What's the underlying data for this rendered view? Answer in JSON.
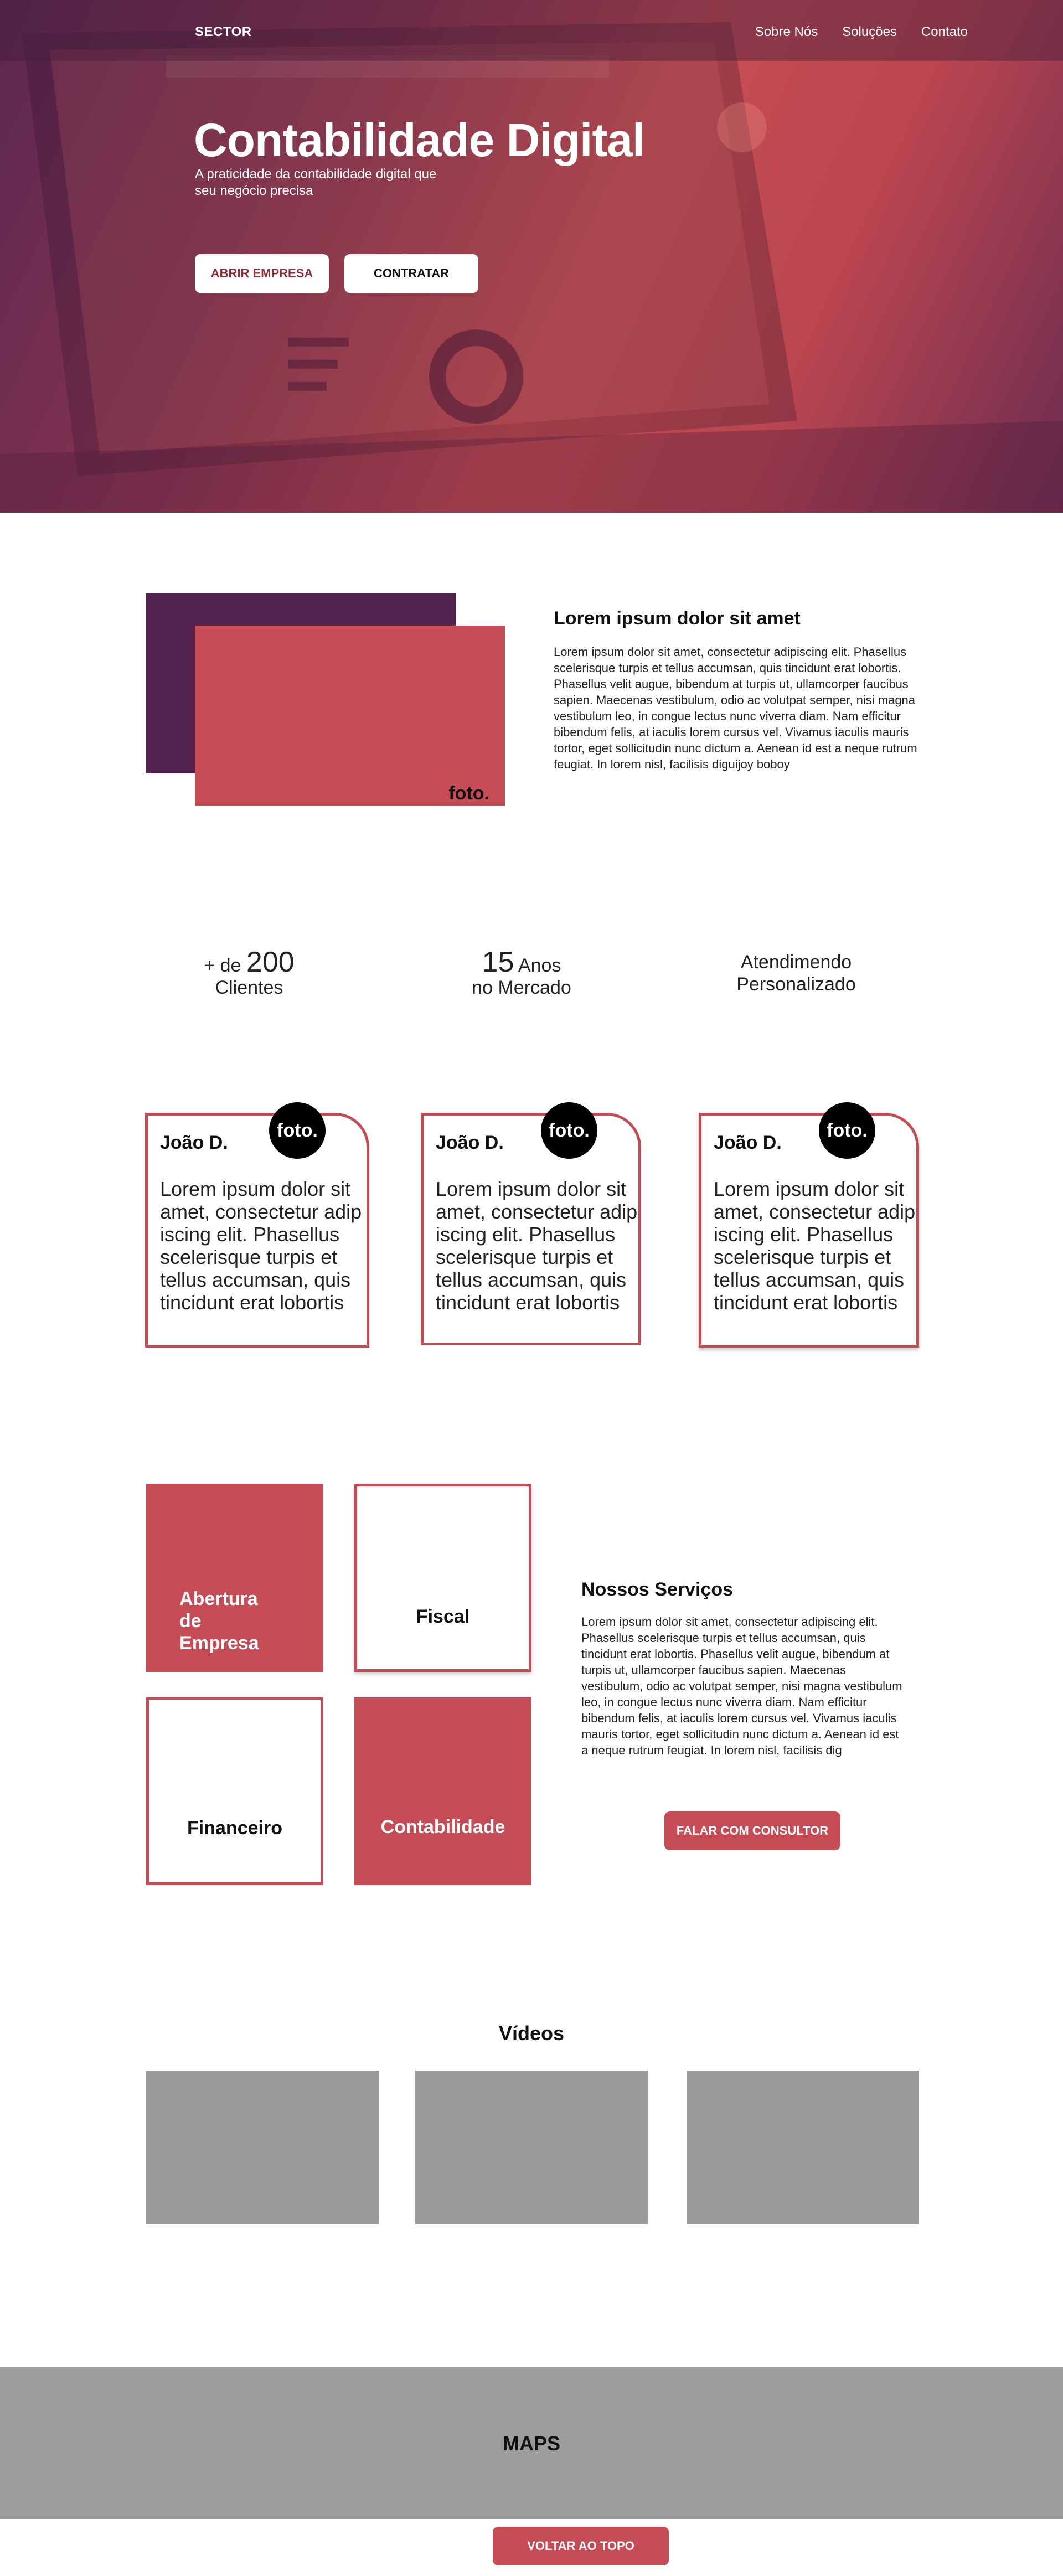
{
  "header": {
    "brand": "SECTOR",
    "nav": [
      "Sobre Nós",
      "Soluções",
      "Contato"
    ]
  },
  "hero": {
    "title": "Contabilidade Digital",
    "subtitle": "A praticidade da contabilidade digital que seu negócio precisa",
    "btn_open": "ABRIR EMPRESA",
    "btn_hire": "CONTRATAR"
  },
  "about": {
    "photo_label": "foto.",
    "title": "Lorem ipsum dolor sit amet",
    "text": "Lorem ipsum dolor sit amet, consectetur adipiscing elit. Phasellus scelerisque turpis et tellus accumsan, quis tincidunt erat lobortis. Phasellus velit augue, bibendum at turpis ut, ullamcorper faucibus sapien. Maecenas vestibulum, odio ac volutpat semper, nisi magna vestibulum leo, in congue lectus nunc viverra diam. Nam efficitur bibendum felis, at iaculis lorem cursus vel. Vivamus iaculis mauris tortor, eget sollicitudin nunc dictum a. Aenean id est a neque rutrum feugiat. In lorem nisl, facilisis diguijoy boboy"
  },
  "stats": [
    {
      "prefix": "+ de",
      "number": "200",
      "suffix": "Clientes"
    },
    {
      "number": "15",
      "suffix_inline": "Anos",
      "suffix": "no Mercado"
    },
    {
      "line1": "Atendimendo",
      "line2": "Personalizado"
    }
  ],
  "team": [
    {
      "name": "João D.",
      "photo": "foto.",
      "text": "Lorem ipsum dolor sit amet, consectetur adip iscing elit. Phasellus scelerisque turpis et tellus accumsan, quis tincidunt erat lobortis"
    },
    {
      "name": "João D.",
      "photo": "foto.",
      "text": "Lorem ipsum dolor sit amet, consectetur adip iscing elit. Phasellus scelerisque turpis et tellus accumsan, quis tincidunt erat lobortis"
    },
    {
      "name": "João D.",
      "photo": "foto.",
      "text": "Lorem ipsum dolor sit amet, consectetur adip iscing elit. Phasellus scelerisque turpis et tellus accumsan, quis tincidunt erat lobortis"
    }
  ],
  "services": {
    "items": [
      {
        "line1": "Abertura",
        "line2": "de",
        "line3": "Empresa"
      },
      {
        "label": "Fiscal"
      },
      {
        "label": "Financeiro"
      },
      {
        "label": "Contabilidade"
      }
    ],
    "title": "Nossos Serviços",
    "text": "Lorem ipsum dolor sit amet, consectetur adipiscing elit. Phasellus scelerisque turpis et tellus accumsan, quis tincidunt erat lobortis. Phasellus velit augue, bibendum at turpis ut, ullamcorper faucibus sapien. Maecenas vestibulum, odio ac volutpat semper, nisi magna vestibulum leo, in congue lectus nunc viverra diam. Nam efficitur bibendum felis, at iaculis lorem cursus vel. Vivamus iaculis mauris tortor, eget sollicitudin nunc dictum a. Aenean id est a neque rutrum feugiat. In lorem nisl, facilisis dig",
    "cta": "FALAR COM CONSULTOR"
  },
  "videos": {
    "title": "Vídeos"
  },
  "maps": {
    "label": "MAPS"
  },
  "back_to_top": "VOLTAR AO TOPO",
  "colors": {
    "accent": "#c54b55",
    "plum": "#55234f",
    "placeholder_gray": "#9b9b9b"
  }
}
